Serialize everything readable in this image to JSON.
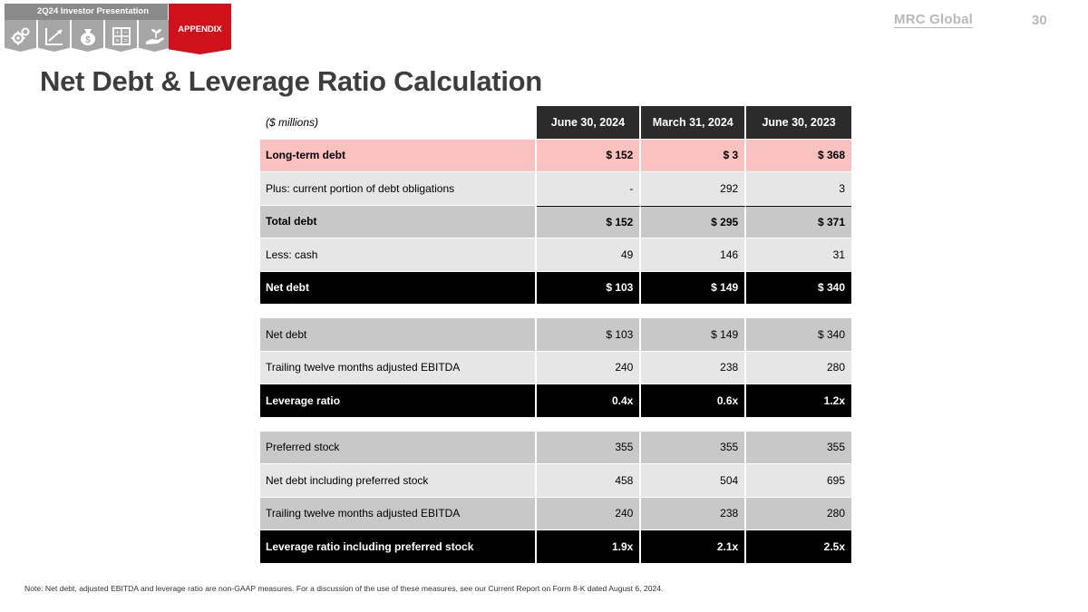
{
  "header": {
    "banner": "2Q24  Investor Presentation",
    "appendix_tab": "APPENDIX",
    "logo": "MRC Global",
    "page_number": "30",
    "icons": [
      "gears-icon",
      "growth-chart-icon",
      "money-bag-icon",
      "calculator-icon",
      "hand-plant-icon"
    ]
  },
  "title": "Net Debt & Leverage Ratio Calculation",
  "table": {
    "unit_label": "($ millions)",
    "columns": [
      "June 30, 2024",
      "March 31, 2024",
      "June 30, 2023"
    ],
    "section1": [
      {
        "label": "Long-term debt",
        "values": [
          "$ 152",
          "$ 3",
          "$ 368"
        ]
      },
      {
        "label": "Plus: current portion of debt obligations",
        "values": [
          "-",
          "292",
          "3"
        ]
      },
      {
        "label": "Total debt",
        "values": [
          "$ 152",
          "$ 295",
          "$ 371"
        ]
      },
      {
        "label": "Less: cash",
        "values": [
          "49",
          "146",
          "31"
        ]
      },
      {
        "label": "Net debt",
        "values": [
          "$ 103",
          "$ 149",
          "$ 340"
        ]
      }
    ],
    "section2": [
      {
        "label": "Net debt",
        "values": [
          "$ 103",
          "$ 149",
          "$ 340"
        ]
      },
      {
        "label": "Trailing twelve months adjusted EBITDA",
        "values": [
          "240",
          "238",
          "280"
        ]
      },
      {
        "label": "Leverage ratio",
        "values": [
          "0.4x",
          "0.6x",
          "1.2x"
        ]
      }
    ],
    "section3": [
      {
        "label": "Preferred stock",
        "values": [
          "355",
          "355",
          "355"
        ]
      },
      {
        "label": "Net debt including preferred stock",
        "values": [
          "458",
          "504",
          "695"
        ]
      },
      {
        "label": "Trailing twelve months adjusted EBITDA",
        "values": [
          "240",
          "238",
          "280"
        ]
      },
      {
        "label": "Leverage ratio including preferred stock",
        "values": [
          "1.9x",
          "2.1x",
          "2.5x"
        ]
      }
    ]
  },
  "note": "Note: Net debt, adjusted EBITDA and leverage ratio are non-GAAP measures. For a discussion of the use of these measures, see our Current Report on Form 8-K dated August 6, 2024.",
  "colors": {
    "accent_red": "#d0101a",
    "header_dark": "#2b2b2b",
    "highlight_pink": "#fbc0c0",
    "row_light": "#e6e6e6",
    "row_mid": "#c8c8c8"
  }
}
